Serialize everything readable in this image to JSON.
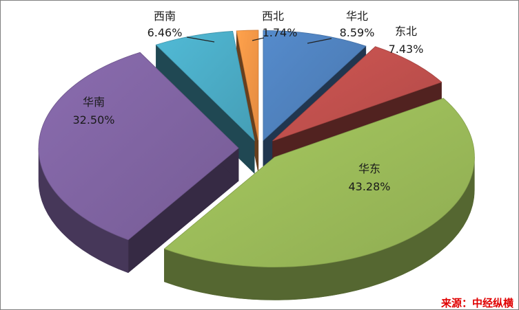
{
  "chart_data": {
    "type": "pie",
    "style": "3d-exploded",
    "slices": [
      {
        "name": "华北",
        "value": 8.59,
        "label": "8.59%",
        "color": "#4f81bd"
      },
      {
        "name": "东北",
        "value": 7.43,
        "label": "7.43%",
        "color": "#c0504d"
      },
      {
        "name": "华东",
        "value": 43.28,
        "label": "43.28%",
        "color": "#9bbb59"
      },
      {
        "name": "华南",
        "value": 32.5,
        "label": "32.50%",
        "color": "#8064a2"
      },
      {
        "name": "西南",
        "value": 6.46,
        "label": "6.46%",
        "color": "#4bacc6"
      },
      {
        "name": "西北",
        "value": 1.74,
        "label": "1.74%",
        "color": "#f79646"
      }
    ],
    "legend": "none"
  },
  "source": "来源：中经纵横"
}
